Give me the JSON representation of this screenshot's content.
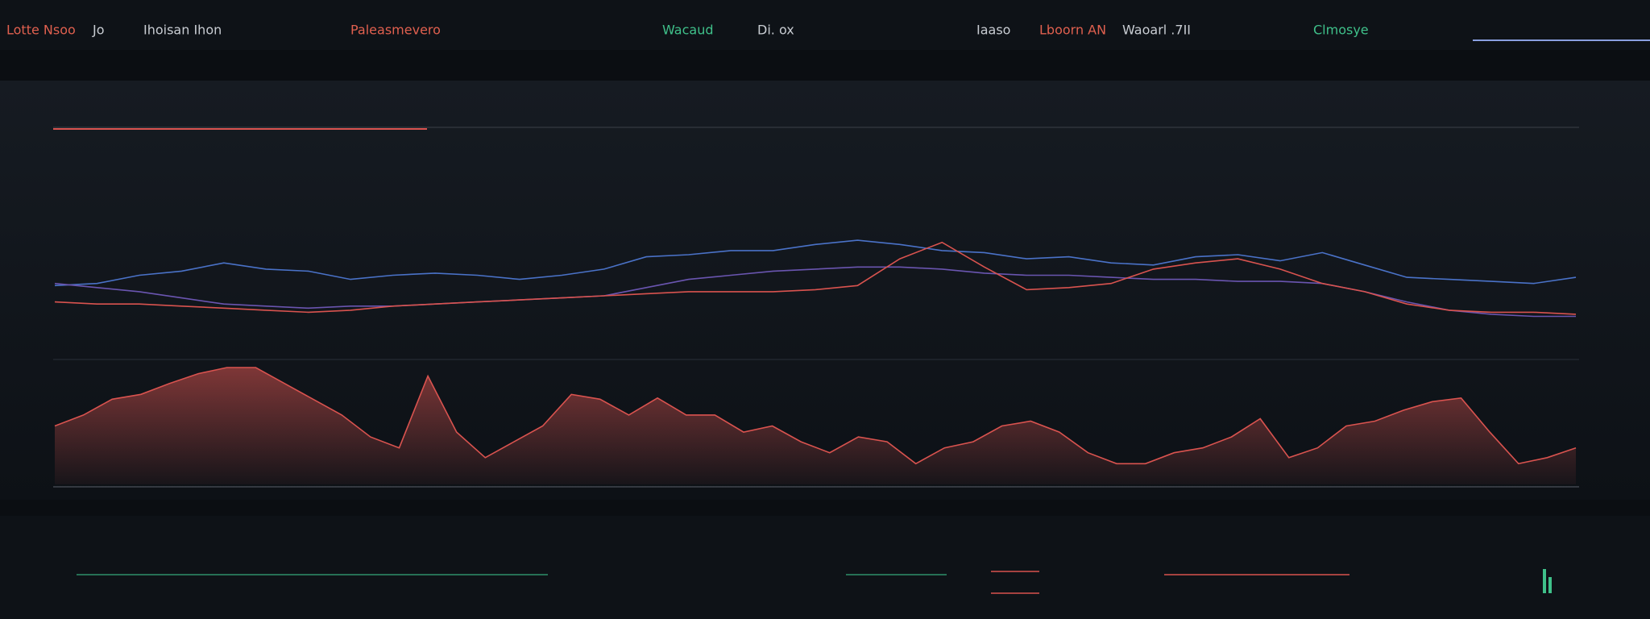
{
  "header": {
    "labels": [
      {
        "text": "Lotte Nsoo",
        "color": "#e0604f"
      },
      {
        "text": "Jo",
        "color": "#c8ccd2"
      },
      {
        "text": "Ihoisan Ihon",
        "color": "#c8ccd2"
      },
      {
        "text": "Paleasmevero",
        "color": "#e0604f"
      },
      {
        "text": "Wacaud",
        "color": "#3fc08a"
      },
      {
        "text": "Di. ox",
        "color": "#c8ccd2"
      },
      {
        "text": "Iaaso",
        "color": "#c8ccd2"
      },
      {
        "text": "Lboorn AN",
        "color": "#e0604f"
      },
      {
        "text": "Waoarl .7II",
        "color": "#c8ccd2"
      },
      {
        "text": "Clmosye",
        "color": "#3fc08a"
      }
    ]
  },
  "chart_data": [
    {
      "type": "line",
      "ylim": [
        0,
        100
      ],
      "series": [
        {
          "color": "#4a72c8",
          "values": [
            25,
            26,
            30,
            32,
            36,
            33,
            32,
            28,
            30,
            31,
            30,
            28,
            30,
            33,
            39,
            40,
            42,
            42,
            45,
            47,
            45,
            42,
            41,
            38,
            39,
            36,
            35,
            39,
            40,
            37,
            41,
            35,
            29,
            28,
            27,
            26,
            29
          ]
        },
        {
          "color": "#6a55b0",
          "values": [
            26,
            24,
            22,
            19,
            16,
            15,
            14,
            15,
            15,
            16,
            17,
            18,
            19,
            20,
            24,
            28,
            30,
            32,
            33,
            34,
            34,
            33,
            31,
            30,
            30,
            29,
            28,
            28,
            27,
            27,
            26,
            22,
            17,
            13,
            11,
            10,
            10
          ]
        },
        {
          "color": "#d9534f",
          "values": [
            17,
            16,
            16,
            15,
            14,
            13,
            12,
            13,
            15,
            16,
            17,
            18,
            19,
            20,
            21,
            22,
            22,
            22,
            23,
            25,
            38,
            46,
            34,
            23,
            24,
            26,
            33,
            36,
            38,
            33,
            26,
            22,
            16,
            13,
            12,
            12,
            11
          ]
        }
      ]
    },
    {
      "type": "area",
      "ylim": [
        0,
        100
      ],
      "series": [
        {
          "color": "#d9534f",
          "values": [
            48,
            57,
            70,
            74,
            83,
            91,
            96,
            96,
            83,
            70,
            57,
            39,
            30,
            89,
            43,
            22,
            35,
            48,
            74,
            70,
            57,
            71,
            57,
            57,
            43,
            48,
            35,
            26,
            39,
            35,
            17,
            30,
            35,
            48,
            52,
            43,
            26,
            17,
            17,
            26,
            30,
            39,
            54,
            22,
            30,
            48,
            52,
            61,
            68,
            71,
            43,
            17,
            22,
            30
          ]
        }
      ]
    }
  ]
}
